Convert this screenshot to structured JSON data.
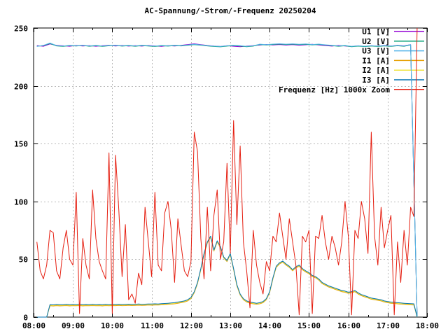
{
  "window": {
    "title": "AC-Spannung/-Strom/-Frequenz 20250204"
  },
  "chart_data": {
    "type": "line",
    "title": "AC-Spannung/-Strom/-Frequenz 20250204",
    "grid": true,
    "legend_position": "top-right",
    "xlim_minutes": [
      480,
      1080
    ],
    "x_ticks": [
      {
        "minute": 480,
        "label": "08:00"
      },
      {
        "minute": 540,
        "label": "09:00"
      },
      {
        "minute": 600,
        "label": "10:00"
      },
      {
        "minute": 660,
        "label": "11:00"
      },
      {
        "minute": 720,
        "label": "12:00"
      },
      {
        "minute": 780,
        "label": "13:00"
      },
      {
        "minute": 840,
        "label": "14:00"
      },
      {
        "minute": 900,
        "label": "15:00"
      },
      {
        "minute": 960,
        "label": "16:00"
      },
      {
        "minute": 1020,
        "label": "17:00"
      },
      {
        "minute": 1080,
        "label": "18:00"
      }
    ],
    "x_minor_tick_minutes": [
      510,
      570,
      630,
      690,
      750,
      810,
      870,
      930,
      990,
      1050
    ],
    "ylim": [
      0,
      250
    ],
    "y_ticks": [
      0,
      50,
      100,
      150,
      200,
      250
    ],
    "axis_color": "#000000",
    "grid_color": "#b8b8b8",
    "series": [
      {
        "name": "U1 [V]",
        "color": "#9400d3",
        "start_minute": 485,
        "step_minutes": 10,
        "values": [
          234.8,
          234.2,
          236.2,
          235.0,
          234.6,
          234.2,
          234.9,
          234.4,
          234.8,
          234.2,
          234.7,
          235.1,
          234.4,
          234.9,
          234.3,
          234.8,
          234.3,
          234.9,
          234.5,
          234.1,
          234.8,
          234.4,
          235.0,
          235.7,
          236.3,
          235.6,
          234.9,
          234.4,
          234.0,
          234.7,
          234.2,
          233.8,
          234.3,
          234.8,
          235.2,
          235.8,
          235.3,
          235.7,
          235.2,
          235.6,
          235.1,
          235.5,
          235.9,
          235.3,
          234.8,
          234.3,
          234.9,
          234.4,
          234.0,
          234.6,
          234.1,
          234.7,
          234.3,
          234.9,
          234.4,
          235.0,
          234.6,
          235.6,
          0
        ]
      },
      {
        "name": "U2 [V]",
        "color": "#009e73",
        "start_minute": 485,
        "step_minutes": 10,
        "values": [
          234.2,
          234.8,
          236.6,
          234.5,
          234.1,
          234.8,
          234.4,
          234.9,
          234.2,
          234.7,
          234.1,
          234.6,
          234.9,
          234.3,
          234.7,
          234.2,
          234.8,
          234.4,
          234.0,
          234.6,
          234.3,
          234.8,
          234.5,
          235.0,
          235.6,
          235.1,
          234.5,
          234.0,
          233.7,
          234.3,
          234.8,
          234.4,
          233.8,
          234.3,
          235.7,
          235.3,
          235.8,
          236.1,
          235.7,
          236.0,
          235.6,
          235.9,
          235.4,
          235.8,
          235.2,
          234.7,
          234.2,
          234.6,
          233.8,
          234.3,
          233.9,
          234.4,
          234.0,
          234.5,
          234.1,
          234.6,
          234.2,
          235.3,
          0
        ]
      },
      {
        "name": "U3 [V]",
        "color": "#56b4e9",
        "start_minute": 485,
        "step_minutes": 10,
        "values": [
          234.0,
          235.0,
          237.0,
          234.8,
          234.4,
          235.0,
          234.6,
          235.1,
          234.5,
          235.0,
          234.4,
          234.9,
          235.1,
          234.6,
          235.0,
          234.5,
          235.1,
          234.7,
          234.3,
          234.9,
          234.6,
          235.1,
          234.8,
          235.3,
          235.9,
          235.4,
          234.8,
          234.3,
          234.0,
          234.6,
          235.1,
          234.7,
          234.1,
          234.6,
          236.0,
          235.6,
          236.1,
          236.4,
          236.0,
          236.3,
          235.9,
          236.2,
          235.7,
          236.1,
          235.5,
          235.0,
          234.5,
          234.9,
          234.1,
          234.6,
          234.2,
          234.7,
          234.3,
          234.8,
          234.4,
          234.9,
          234.5,
          235.6,
          0
        ]
      },
      {
        "name": "I1 [A]",
        "color": "#e69f00",
        "start_minute": 485,
        "step_minutes": 5,
        "values": [
          0,
          0,
          0,
          0,
          9.8,
          9.6,
          9.9,
          9.7,
          9.8,
          10.0,
          9.7,
          9.9,
          9.8,
          10.0,
          9.7,
          9.9,
          9.8,
          10.0,
          9.8,
          9.9,
          9.7,
          10.0,
          9.8,
          10.0,
          9.9,
          10.1,
          9.9,
          10.0,
          10.2,
          10.0,
          10.1,
          10.3,
          10.1,
          10.2,
          10.4,
          10.3,
          10.5,
          10.4,
          10.6,
          10.8,
          11.0,
          11.2,
          11.5,
          12.0,
          12.5,
          13.0,
          14.0,
          16.0,
          21,
          29,
          41,
          54,
          64,
          69,
          57,
          65,
          60,
          51,
          48,
          54,
          41,
          27,
          19,
          15,
          13,
          12,
          11.5,
          11,
          11.5,
          12.5,
          15,
          21,
          33,
          43,
          46,
          47.5,
          45,
          43,
          40,
          42.5,
          44,
          41,
          39,
          37.5,
          35,
          34,
          32,
          29,
          27.5,
          26,
          25,
          24,
          23,
          22,
          21.5,
          20.5,
          21,
          22,
          20,
          18.5,
          17.5,
          16.5,
          15.5,
          15,
          14.5,
          14,
          13,
          12.5,
          12,
          11.8,
          11.5,
          11.2,
          11,
          10.8,
          10.6,
          10.5,
          0
        ]
      },
      {
        "name": "I2 [A]",
        "color": "#f0e442",
        "start_minute": 485,
        "step_minutes": 5,
        "values": [
          0,
          0,
          0,
          0,
          10.3,
          10.1,
          10.4,
          10.2,
          10.3,
          10.5,
          10.2,
          10.4,
          10.3,
          10.5,
          10.2,
          10.4,
          10.3,
          10.5,
          10.3,
          10.4,
          10.2,
          10.5,
          10.3,
          10.5,
          10.4,
          10.6,
          10.4,
          10.5,
          10.7,
          10.5,
          10.6,
          10.8,
          10.6,
          10.7,
          10.9,
          10.8,
          11.0,
          10.9,
          11.1,
          11.3,
          11.5,
          11.7,
          12.0,
          12.5,
          13.0,
          13.5,
          14.5,
          16.5,
          21.5,
          29.5,
          41.5,
          54.5,
          64.5,
          69.5,
          57.5,
          65.5,
          60.5,
          51.5,
          48.5,
          54.5,
          41.5,
          27.5,
          19.5,
          15.5,
          13.5,
          12.5,
          12.0,
          11.5,
          12.0,
          13.0,
          15.5,
          21.5,
          33.5,
          43.5,
          46.5,
          48.0,
          45.5,
          43.5,
          40.5,
          43.0,
          44.5,
          41.5,
          39.5,
          38.0,
          35.5,
          34.5,
          32.5,
          29.5,
          28.0,
          26.5,
          25.5,
          24.5,
          23.5,
          22.5,
          22.0,
          21.0,
          21.5,
          22.5,
          20.5,
          19.0,
          18.0,
          17.0,
          16.0,
          15.5,
          15.0,
          14.5,
          13.5,
          13.0,
          12.5,
          12.3,
          12.0,
          11.7,
          11.5,
          11.3,
          11.1,
          11.0,
          0
        ]
      },
      {
        "name": "I3 [A]",
        "color": "#0072b2",
        "start_minute": 485,
        "step_minutes": 5,
        "values": [
          0,
          0,
          0,
          0,
          10.8,
          10.6,
          10.9,
          10.7,
          10.8,
          11.0,
          10.7,
          10.9,
          10.8,
          11.0,
          10.7,
          10.9,
          10.8,
          11.0,
          10.8,
          10.9,
          10.7,
          11.0,
          10.8,
          11.0,
          10.9,
          11.1,
          10.9,
          11.0,
          11.2,
          11.0,
          11.1,
          11.3,
          11.1,
          11.2,
          11.4,
          11.3,
          11.5,
          11.4,
          11.6,
          11.8,
          12.0,
          12.2,
          12.5,
          13.0,
          13.5,
          14.0,
          15.0,
          17.0,
          22,
          30,
          42,
          55,
          65,
          70,
          58,
          66,
          61,
          52,
          49,
          55,
          42,
          28,
          20,
          16,
          14,
          13,
          12.5,
          12,
          12.5,
          13.5,
          16,
          22,
          34,
          44,
          47,
          48.5,
          46,
          44,
          41,
          43.5,
          45,
          42,
          40,
          38.5,
          36,
          35,
          33,
          30,
          28.5,
          27,
          26,
          25,
          24,
          23,
          22.5,
          21.5,
          22,
          23,
          21,
          19.5,
          18.5,
          17.5,
          16.5,
          16,
          15.5,
          15,
          14,
          13.5,
          13,
          12.8,
          12.5,
          12.2,
          12,
          11.8,
          11.6,
          11.5,
          0
        ]
      },
      {
        "name": "Frequenz [Hz] 1000x Zoom",
        "color": "#e51e10",
        "start_minute": 485,
        "step_minutes": 5,
        "values": [
          65,
          40,
          33,
          45,
          75,
          73,
          40,
          33,
          60,
          75,
          50,
          45,
          108,
          3,
          68,
          45,
          33,
          110,
          68,
          48,
          40,
          33,
          142,
          3,
          140,
          92,
          35,
          80,
          15,
          20,
          12,
          38,
          28,
          95,
          65,
          35,
          108,
          45,
          40,
          90,
          100,
          75,
          30,
          85,
          62,
          40,
          35,
          48,
          160,
          143,
          68,
          33,
          95,
          40,
          88,
          110,
          50,
          65,
          133,
          55,
          170,
          80,
          148,
          65,
          40,
          8,
          75,
          45,
          30,
          20,
          48,
          40,
          70,
          65,
          90,
          70,
          50,
          85,
          65,
          45,
          2,
          70,
          65,
          75,
          3,
          70,
          68,
          88,
          65,
          50,
          70,
          60,
          45,
          65,
          100,
          70,
          2,
          75,
          68,
          100,
          85,
          55,
          160,
          70,
          45,
          95,
          60,
          75,
          88,
          2,
          65,
          30,
          75,
          45,
          95,
          87,
          250
        ]
      }
    ]
  }
}
